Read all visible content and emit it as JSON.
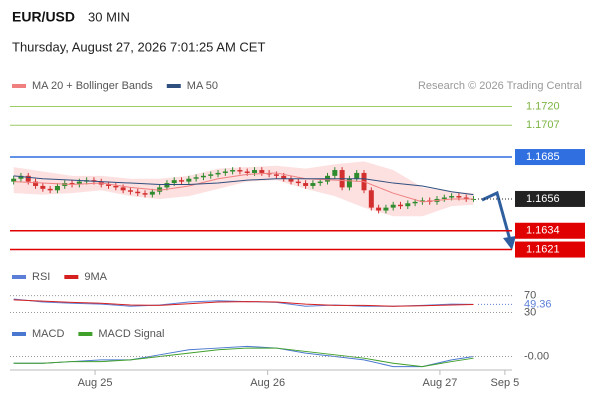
{
  "chart_data": {
    "type": "candlestick",
    "title": "EUR/USD",
    "interval": "30 MIN",
    "subtitle": "Thursday, August 27, 2026 7:01:25 AM CET",
    "source": "Research © 2026 Trading Central",
    "up_color": "#2e8b2e",
    "down_color": "#d32f2f",
    "open": [
      1.1668,
      1.167,
      1.1672,
      1.1668,
      1.1665,
      1.1663,
      1.1662,
      1.1665,
      1.1667,
      1.1666,
      1.1668,
      1.1669,
      1.1668,
      1.1666,
      1.1665,
      1.1664,
      1.1662,
      1.1661,
      1.166,
      1.1659,
      1.1661,
      1.1664,
      1.1667,
      1.1669,
      1.1668,
      1.167,
      1.1671,
      1.1672,
      1.1673,
      1.1674,
      1.1675,
      1.1676,
      1.1675,
      1.1674,
      1.1676,
      1.1674,
      1.1673,
      1.1672,
      1.167,
      1.1668,
      1.1667,
      1.1665,
      1.1667,
      1.1668,
      1.1672,
      1.1676,
      1.1664,
      1.167,
      1.1674,
      1.1662,
      1.165,
      1.1648,
      1.165,
      1.1652,
      1.1651,
      1.1653,
      1.1654,
      1.1655,
      1.1654,
      1.1656,
      1.1657,
      1.1658,
      1.1657,
      1.1656
    ],
    "high": [
      1.1672,
      1.1674,
      1.1674,
      1.167,
      1.1667,
      1.1665,
      1.1667,
      1.1669,
      1.1669,
      1.167,
      1.1671,
      1.1671,
      1.167,
      1.1668,
      1.1667,
      1.1666,
      1.1664,
      1.1663,
      1.1662,
      1.1663,
      1.1666,
      1.1669,
      1.1671,
      1.1671,
      1.1672,
      1.1673,
      1.1674,
      1.1675,
      1.1676,
      1.1677,
      1.1678,
      1.1678,
      1.1677,
      1.1678,
      1.1678,
      1.1676,
      1.1675,
      1.1674,
      1.1672,
      1.167,
      1.1669,
      1.1669,
      1.167,
      1.1674,
      1.1678,
      1.1678,
      1.1672,
      1.1676,
      1.1676,
      1.1664,
      1.1652,
      1.1652,
      1.1654,
      1.1654,
      1.1655,
      1.1656,
      1.1657,
      1.1657,
      1.1658,
      1.1659,
      1.166,
      1.166,
      1.1659,
      1.1658
    ],
    "low": [
      1.1666,
      1.1668,
      1.1666,
      1.1663,
      1.1661,
      1.166,
      1.166,
      1.1663,
      1.1664,
      1.1664,
      1.1666,
      1.1666,
      1.1664,
      1.1663,
      1.1662,
      1.166,
      1.1659,
      1.1658,
      1.1657,
      1.1657,
      1.1659,
      1.1662,
      1.1665,
      1.1666,
      1.1666,
      1.1668,
      1.1669,
      1.167,
      1.1671,
      1.1672,
      1.1673,
      1.1673,
      1.1672,
      1.1672,
      1.1672,
      1.1671,
      1.167,
      1.1668,
      1.1666,
      1.1665,
      1.1663,
      1.1663,
      1.1665,
      1.1666,
      1.167,
      1.1662,
      1.1662,
      1.1668,
      1.166,
      1.1648,
      1.1646,
      1.1646,
      1.1648,
      1.1649,
      1.1649,
      1.1651,
      1.1652,
      1.1652,
      1.1652,
      1.1654,
      1.1655,
      1.1655,
      1.1654,
      1.1654
    ],
    "close": [
      1.167,
      1.1672,
      1.1668,
      1.1665,
      1.1663,
      1.1662,
      1.1665,
      1.1667,
      1.1666,
      1.1668,
      1.1669,
      1.1668,
      1.1666,
      1.1665,
      1.1664,
      1.1662,
      1.1661,
      1.166,
      1.1659,
      1.1661,
      1.1664,
      1.1667,
      1.1669,
      1.1668,
      1.167,
      1.1671,
      1.1672,
      1.1673,
      1.1674,
      1.1675,
      1.1676,
      1.1675,
      1.1674,
      1.1676,
      1.1674,
      1.1673,
      1.1672,
      1.167,
      1.1668,
      1.1667,
      1.1665,
      1.1667,
      1.1668,
      1.1672,
      1.1676,
      1.1664,
      1.167,
      1.1674,
      1.1662,
      1.165,
      1.1648,
      1.165,
      1.1652,
      1.1651,
      1.1653,
      1.1654,
      1.1655,
      1.1654,
      1.1656,
      1.1657,
      1.1658,
      1.1657,
      1.1656,
      1.1656
    ],
    "xlim": [
      -0.5,
      68
    ],
    "xticks": [
      {
        "value": 11.15,
        "label": "Aug 25"
      },
      {
        "value": 34.8,
        "label": "Aug 26"
      },
      {
        "value": 58.4,
        "label": "Aug 27"
      },
      {
        "value": 67.3,
        "label": "Sep 5"
      }
    ],
    "ylim": [
      1.1611,
      1.173
    ],
    "overlays": [
      {
        "name": "MA 20 + Bollinger Bands",
        "color": "#f08080",
        "band_color": "#fde0e0",
        "x": [
          0,
          4,
          8,
          12,
          16,
          20,
          24,
          28,
          32,
          36,
          40,
          44,
          48,
          52,
          56,
          60,
          63
        ],
        "values": [
          1.1668,
          1.1667,
          1.1666,
          1.1667,
          1.1664,
          1.1662,
          1.1665,
          1.167,
          1.1673,
          1.1674,
          1.167,
          1.1669,
          1.1668,
          1.166,
          1.1654,
          1.1656,
          1.1656
        ],
        "upper": [
          1.1678,
          1.1675,
          1.1672,
          1.1672,
          1.167,
          1.167,
          1.1672,
          1.1677,
          1.1678,
          1.1679,
          1.1677,
          1.168,
          1.1682,
          1.1676,
          1.1664,
          1.1661,
          1.166
        ],
        "lower": [
          1.166,
          1.1659,
          1.166,
          1.1662,
          1.1658,
          1.1656,
          1.1658,
          1.1663,
          1.1668,
          1.1669,
          1.1663,
          1.1658,
          1.165,
          1.1644,
          1.1644,
          1.1651,
          1.1652
        ]
      },
      {
        "name": "MA 50",
        "color": "#2f4f7f",
        "x": [
          0,
          4,
          8,
          12,
          16,
          20,
          24,
          28,
          32,
          36,
          40,
          44,
          48,
          52,
          56,
          60,
          63
        ],
        "values": [
          1.1672,
          1.167,
          1.1669,
          1.1668,
          1.1667,
          1.1666,
          1.1666,
          1.1667,
          1.1669,
          1.167,
          1.167,
          1.167,
          1.167,
          1.1667,
          1.1665,
          1.1661,
          1.1659
        ]
      }
    ],
    "levels": [
      {
        "value": 1.172,
        "label": "1.1720",
        "color": "#9ccc65",
        "text_color": "#7cb342",
        "boxed": false
      },
      {
        "value": 1.1707,
        "label": "1.1707",
        "color": "#9ccc65",
        "text_color": "#7cb342",
        "boxed": false
      },
      {
        "value": 1.1685,
        "label": "1.1685",
        "color": "#2f6fe0",
        "text_color": "#ffffff",
        "boxed": true
      },
      {
        "value": 1.1634,
        "label": "1.1634",
        "color": "#e00000",
        "text_color": "#ffffff",
        "boxed": true
      },
      {
        "value": 1.1621,
        "label": "1.1621",
        "color": "#e00000",
        "text_color": "#ffffff",
        "boxed": true
      }
    ],
    "current": {
      "value": 1.1656,
      "label": "1.1656",
      "color": "#222222"
    },
    "rsi": {
      "ylim": [
        10,
        100
      ],
      "yticks": [
        70,
        30
      ],
      "series": [
        {
          "name": "RSI",
          "color": "#5b7fd6",
          "x": [
            0,
            4,
            8,
            12,
            16,
            20,
            24,
            28,
            32,
            36,
            40,
            44,
            48,
            52,
            56,
            60,
            63
          ],
          "values": [
            62,
            55,
            52,
            50,
            45,
            48,
            55,
            58,
            56,
            54,
            45,
            48,
            45,
            45,
            47,
            50,
            49.36
          ]
        },
        {
          "name": "9MA",
          "color": "#d62020",
          "x": [
            0,
            4,
            8,
            12,
            16,
            20,
            24,
            28,
            32,
            36,
            40,
            44,
            48,
            52,
            56,
            60,
            63
          ],
          "values": [
            60,
            57,
            54,
            52,
            48,
            47,
            51,
            55,
            56,
            55,
            50,
            47,
            47,
            45,
            46,
            48,
            49
          ]
        }
      ]
    },
    "macd": {
      "ylim": [
        -0.0008,
        0.0008
      ],
      "yticks": [
        {
          "value": 0,
          "label": "-0.00"
        }
      ],
      "series": [
        {
          "name": "MACD",
          "color": "#4a78d0",
          "x": [
            0,
            4,
            8,
            12,
            16,
            20,
            24,
            28,
            32,
            36,
            40,
            44,
            48,
            52,
            56,
            60,
            63
          ],
          "values": [
            -0.0004,
            -0.0004,
            -0.0003,
            -0.0002,
            -0.0002,
            0.0001,
            0.0004,
            0.0005,
            0.0006,
            0.0005,
            0.0002,
            0,
            -0.0002,
            -0.0006,
            -0.0006,
            -0.0002,
            0
          ]
        },
        {
          "name": "MACD Signal",
          "color": "#3fa02a",
          "x": [
            0,
            4,
            8,
            12,
            16,
            20,
            24,
            28,
            32,
            36,
            40,
            44,
            48,
            52,
            56,
            60,
            63
          ],
          "values": [
            -0.0004,
            -0.0004,
            -0.0003,
            -0.0003,
            -0.0002,
            0,
            0.0002,
            0.0004,
            0.0005,
            0.0005,
            0.0003,
            0.0001,
            -0.0001,
            -0.0004,
            -0.0006,
            -0.0003,
            -0.0001
          ]
        }
      ]
    }
  }
}
